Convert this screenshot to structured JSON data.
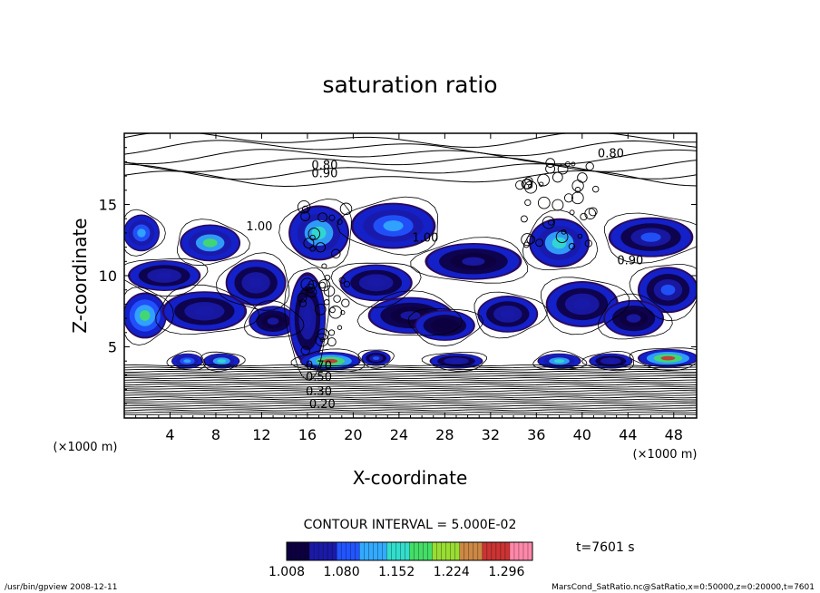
{
  "chart_data": {
    "type": "heatmap",
    "title": "saturation ratio",
    "xlabel": "X-coordinate",
    "ylabel": "Z-coordinate",
    "x_unit": "(×1000 m)",
    "y_unit": "(×1000 m)",
    "xlim": [
      0,
      50
    ],
    "ylim": [
      0,
      20
    ],
    "x_ticks": [
      4,
      8,
      12,
      16,
      20,
      24,
      28,
      32,
      36,
      40,
      44,
      48
    ],
    "y_ticks": [
      5,
      10,
      15
    ],
    "contour_interval_label": "CONTOUR INTERVAL = 5.000E-02",
    "time_label": "t=7601 s",
    "colorbar": {
      "min": 1.008,
      "max": 1.33,
      "tick_values": [
        1.008,
        1.08,
        1.152,
        1.224,
        1.296
      ],
      "tick_labels": [
        "1.008",
        "1.080",
        "1.152",
        "1.224",
        "1.296"
      ],
      "colors": [
        "#0d0040",
        "#1a1aa8",
        "#2255ff",
        "#33aaff",
        "#33ddcc",
        "#44dd66",
        "#99dd33",
        "#cc8844",
        "#cc3333",
        "#ff88aa"
      ]
    },
    "contour_labels": [
      {
        "text": "0.80",
        "x": 17.5,
        "y": 17.5
      },
      {
        "text": "0.90",
        "x": 17.5,
        "y": 16.9
      },
      {
        "text": "0.80",
        "x": 42.5,
        "y": 18.3
      },
      {
        "text": "1.00",
        "x": 11.8,
        "y": 13.2
      },
      {
        "text": "1.00",
        "x": 26.3,
        "y": 12.4
      },
      {
        "text": "0.90",
        "x": 44.2,
        "y": 10.8
      },
      {
        "text": "0.70",
        "x": 17.0,
        "y": 3.4
      },
      {
        "text": "0.50",
        "x": 17.0,
        "y": 2.6
      },
      {
        "text": "0.30",
        "x": 17.0,
        "y": 1.6
      },
      {
        "text": "0.20",
        "x": 17.3,
        "y": 0.7
      }
    ],
    "supersaturated_regions": [
      {
        "x": 1.5,
        "y": 13.0,
        "rx": 1.5,
        "ry": 1.2,
        "peak": 1.12
      },
      {
        "x": 7.5,
        "y": 12.3,
        "rx": 2.5,
        "ry": 1.2,
        "peak": 1.17
      },
      {
        "x": 3.5,
        "y": 10.0,
        "rx": 3.0,
        "ry": 1.0,
        "peak": 1.06
      },
      {
        "x": 1.8,
        "y": 7.2,
        "rx": 1.8,
        "ry": 1.5,
        "peak": 1.18
      },
      {
        "x": 7.0,
        "y": 7.5,
        "rx": 3.5,
        "ry": 1.3,
        "peak": 1.07
      },
      {
        "x": 11.5,
        "y": 9.5,
        "rx": 2.5,
        "ry": 1.5,
        "peak": 1.06
      },
      {
        "x": 13.0,
        "y": 6.8,
        "rx": 2.0,
        "ry": 1.0,
        "peak": 1.05
      },
      {
        "x": 17.0,
        "y": 13.0,
        "rx": 2.5,
        "ry": 1.8,
        "peak": 1.15
      },
      {
        "x": 16.0,
        "y": 7.0,
        "rx": 1.5,
        "ry": 3.0,
        "peak": 1.06
      },
      {
        "x": 23.5,
        "y": 13.5,
        "rx": 3.5,
        "ry": 1.5,
        "peak": 1.12
      },
      {
        "x": 22.0,
        "y": 9.5,
        "rx": 3.0,
        "ry": 1.2,
        "peak": 1.06
      },
      {
        "x": 25.0,
        "y": 7.2,
        "rx": 3.5,
        "ry": 1.2,
        "peak": 1.05
      },
      {
        "x": 30.5,
        "y": 11.0,
        "rx": 4.0,
        "ry": 1.2,
        "peak": 1.05
      },
      {
        "x": 28.0,
        "y": 6.5,
        "rx": 2.5,
        "ry": 1.0,
        "peak": 1.04
      },
      {
        "x": 33.5,
        "y": 7.3,
        "rx": 2.5,
        "ry": 1.2,
        "peak": 1.06
      },
      {
        "x": 38.0,
        "y": 12.3,
        "rx": 2.5,
        "ry": 1.6,
        "peak": 1.16
      },
      {
        "x": 40.0,
        "y": 8.0,
        "rx": 3.0,
        "ry": 1.5,
        "peak": 1.07
      },
      {
        "x": 46.0,
        "y": 12.7,
        "rx": 3.5,
        "ry": 1.3,
        "peak": 1.08
      },
      {
        "x": 47.5,
        "y": 9.0,
        "rx": 2.5,
        "ry": 1.5,
        "peak": 1.08
      },
      {
        "x": 44.5,
        "y": 7.0,
        "rx": 2.5,
        "ry": 1.2,
        "peak": 1.05
      },
      {
        "x": 5.5,
        "y": 4.0,
        "rx": 1.3,
        "ry": 0.5,
        "peak": 1.12
      },
      {
        "x": 8.5,
        "y": 4.0,
        "rx": 1.5,
        "ry": 0.5,
        "peak": 1.16
      },
      {
        "x": 18.0,
        "y": 4.0,
        "rx": 2.5,
        "ry": 0.6,
        "peak": 1.29
      },
      {
        "x": 22.0,
        "y": 4.2,
        "rx": 1.2,
        "ry": 0.5,
        "peak": 1.08
      },
      {
        "x": 29.0,
        "y": 4.0,
        "rx": 2.2,
        "ry": 0.5,
        "peak": 1.07
      },
      {
        "x": 38.0,
        "y": 4.0,
        "rx": 1.8,
        "ry": 0.5,
        "peak": 1.15
      },
      {
        "x": 42.5,
        "y": 4.0,
        "rx": 1.8,
        "ry": 0.5,
        "peak": 1.07
      },
      {
        "x": 47.5,
        "y": 4.2,
        "rx": 2.5,
        "ry": 0.6,
        "peak": 1.28
      }
    ]
  },
  "footer": {
    "left": "/usr/bin/gpview   2008-12-11",
    "right": "MarsCond_SatRatio.nc@SatRatio,x=0:50000,z=0:20000,t=7601"
  }
}
